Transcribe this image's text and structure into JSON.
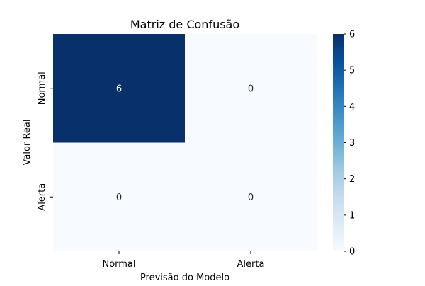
{
  "chart_data": {
    "type": "heatmap",
    "title": "Matriz de Confusão",
    "xlabel": "Previsão do Modelo",
    "ylabel": "Valor Real",
    "x_categories": [
      "Normal",
      "Alerta"
    ],
    "y_categories": [
      "Normal",
      "Alerta"
    ],
    "matrix": [
      [
        6,
        0
      ],
      [
        0,
        0
      ]
    ],
    "colorbar": {
      "min": 0,
      "max": 6,
      "ticks": [
        0,
        1,
        2,
        3,
        4,
        5,
        6
      ],
      "colormap": "Blues",
      "low_color": "#f7fbff",
      "high_color": "#08306b"
    },
    "annotation_colors": {
      "on_dark": "#ffffff",
      "on_light": "#262626"
    }
  }
}
